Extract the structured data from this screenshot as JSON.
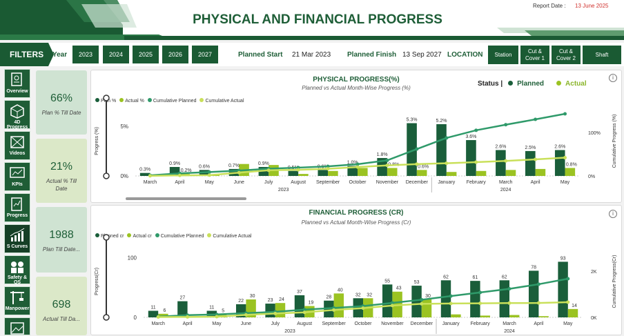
{
  "header": {
    "title": "PHYSICAL AND FINANCIAL PROGRESS",
    "report_label": "Report Date :",
    "report_date": "13 June 2025"
  },
  "filters": {
    "title": "FILTERS",
    "year_label": "Year",
    "years": [
      "2023",
      "2024",
      "2025",
      "2026",
      "2027"
    ],
    "planned_start_label": "Planned Start",
    "planned_start": "21 Mar 2023",
    "planned_finish_label": "Planned Finish",
    "planned_finish": "13 Sep 2027",
    "location_label": "LOCATION",
    "locations": [
      "Station",
      "Cut &\nCover 1",
      "Cut &\nCover 2",
      "Shaft"
    ]
  },
  "nav": [
    "Overview",
    "4D Progress",
    "Videos",
    "KPIs",
    "Progress",
    "S Curves",
    "Safety & QS",
    "Manpower"
  ],
  "kpis": [
    {
      "value": "66%",
      "label": "Plan % Till Date"
    },
    {
      "value": "21%",
      "label": "Actual % Till Date"
    },
    {
      "value": "1988",
      "label": "Plan Till Date..."
    },
    {
      "value": "698",
      "label": "Actual Till Da..."
    }
  ],
  "status": {
    "label": "Status |",
    "planned": "Planned",
    "actual": "Actual"
  },
  "colors": {
    "planned": "#1a5e3a",
    "actual": "#9bc322",
    "cum_planned": "#2f9a6a",
    "cum_actual": "#c9e05a"
  },
  "chart_data": [
    {
      "type": "bar",
      "title": "PHYSICAL PROGRESS(%)",
      "subtitle": "Planned vs Actual Month-Wise Progress (%)",
      "legend": [
        "Plan %",
        "Actual %",
        "Cumulative Planned",
        "Cumulative Actual"
      ],
      "categories": [
        "March",
        "April",
        "May",
        "June",
        "July",
        "August",
        "September",
        "October",
        "November",
        "December",
        "January",
        "February",
        "March",
        "April",
        "May"
      ],
      "year_groups": [
        {
          "label": "2023",
          "count": 10
        },
        {
          "label": "2024",
          "count": 5
        }
      ],
      "series": [
        {
          "name": "Plan %",
          "values": [
            0.3,
            0.9,
            0.6,
            0.7,
            0.9,
            0.5,
            0.6,
            1.0,
            1.8,
            5.3,
            5.2,
            3.6,
            2.6,
            2.5,
            2.6
          ]
        },
        {
          "name": "Actual %",
          "values": [
            0.05,
            0.2,
            0.1,
            1.2,
            1.1,
            0.2,
            0.5,
            0.8,
            0.8,
            0.6,
            0.4,
            0.5,
            0.6,
            0.7,
            0.8
          ]
        }
      ],
      "plan_labels": [
        "0.3%",
        "0.9%",
        "0.6%",
        "0.7%",
        "0.9%",
        "0.5%",
        "0.6%",
        "1.0%",
        "1.8%",
        "5.3%",
        "5.2%",
        "3.6%",
        "2.6%",
        "2.5%",
        "2.6%"
      ],
      "actual_labels": [
        "",
        "0.2%",
        "",
        "",
        "",
        "",
        "",
        "",
        "0.8%",
        "0.6%",
        "",
        "",
        "",
        "",
        "0.8%"
      ],
      "ylabel": "Progress (%)",
      "ylim": [
        0,
        7
      ],
      "yticks": [
        "0%",
        "5%"
      ],
      "y2label": "Cumulative Progress (%)",
      "y2ticks": [
        "0%",
        "100%"
      ]
    },
    {
      "type": "bar",
      "title": "FINANCIAL PROGRESS (CR)",
      "subtitle": "Planned vs Actual Month-Wise Progress (Cr)",
      "legend": [
        "Planned cr",
        "Actual cr",
        "Cumulative Planned",
        "Cumulative Actual"
      ],
      "categories": [
        "March",
        "April",
        "May",
        "June",
        "July",
        "August",
        "September",
        "October",
        "November",
        "December",
        "January",
        "February",
        "March",
        "April",
        "May"
      ],
      "year_groups": [
        {
          "label": "2023",
          "count": 10
        },
        {
          "label": "2024",
          "count": 5
        }
      ],
      "series": [
        {
          "name": "Planned cr",
          "values": [
            11,
            27,
            11,
            22,
            23,
            37,
            28,
            32,
            55,
            53,
            62,
            61,
            62,
            78,
            93
          ]
        },
        {
          "name": "Actual cr",
          "values": [
            6,
            1,
            5,
            30,
            24,
            19,
            40,
            32,
            43,
            30,
            5,
            3,
            4,
            2,
            14
          ]
        }
      ],
      "plan_labels": [
        "11",
        "27",
        "11",
        "22",
        "23",
        "37",
        "28",
        "32",
        "55",
        "53",
        "62",
        "61",
        "62",
        "78",
        "93"
      ],
      "actual_labels": [
        "6",
        "",
        "5",
        "30",
        "24",
        "19",
        "40",
        "32",
        "43",
        "30",
        "",
        "",
        "",
        "",
        "14"
      ],
      "ylabel": "Progress(Cr)",
      "ylim": [
        0,
        120
      ],
      "yticks": [
        "0",
        "100"
      ],
      "y2label": "Cumulative Progress(Cr)",
      "y2ticks": [
        "0K",
        "2K"
      ]
    }
  ]
}
